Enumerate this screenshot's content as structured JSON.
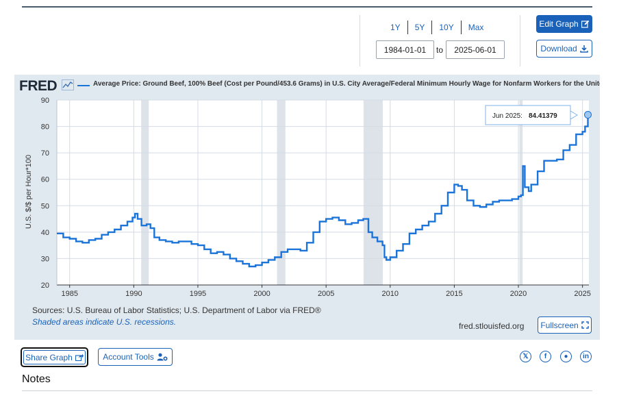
{
  "range_buttons": [
    "1Y",
    "5Y",
    "10Y",
    "Max"
  ],
  "date_range": {
    "start": "1984-01-01",
    "to_label": "to",
    "end": "2025-06-01"
  },
  "edit_graph_label": "Edit Graph",
  "download_label": "Download",
  "fred_logo": "FRED",
  "fullscreen_label": "Fullscreen",
  "sources": "Sources: U.S. Bureau of Labor Statistics; U.S. Department of Labor via FRED®",
  "recession_note": "Shaded areas indicate U.S. recessions.",
  "fred_url": "fred.stlouisfed.org",
  "share_label": "Share Graph",
  "account_label": "Account Tools",
  "notes_title": "Notes",
  "social_icons": [
    "x-icon",
    "facebook-icon",
    "reddit-icon",
    "linkedin-icon"
  ],
  "colors": {
    "accent": "#1a62b9",
    "series": "#1a73d8",
    "recession": "#dde3e9",
    "panel": "#e1e9f0"
  },
  "chart_data": {
    "type": "line",
    "title": "Average Price: Ground Beef, 100% Beef (Cost per Pound/453.6 Grams) in U.S. City Average/Federal Minimum Hourly Wage for Nonfarm Workers for the Unite",
    "ylabel": "U.S. $/$ per Hour*100",
    "xlabel": "",
    "ylim": [
      20,
      90
    ],
    "xlim": [
      1984.0,
      2025.5
    ],
    "yticks": [
      20,
      30,
      40,
      50,
      60,
      70,
      80,
      90
    ],
    "xticks": [
      1985,
      1990,
      1995,
      2000,
      2005,
      2010,
      2015,
      2020,
      2025
    ],
    "grid": true,
    "recessions": [
      [
        1990.58,
        1991.17
      ],
      [
        2001.17,
        2001.83
      ],
      [
        2007.92,
        2009.42
      ],
      [
        2020.08,
        2020.33
      ]
    ],
    "tooltip": {
      "label": "Jun 2025:",
      "value": "84.41379"
    },
    "series": [
      {
        "x": [
          1984.0,
          1984.5,
          1985.0,
          1985.5,
          1986.0,
          1986.5,
          1987.0,
          1987.5,
          1988.0,
          1988.5,
          1989.0,
          1989.5,
          1989.9,
          1990.1,
          1990.3,
          1990.6,
          1991.0,
          1991.3,
          1991.6,
          1992.0,
          1992.5,
          1993.0,
          1993.5,
          1994.0,
          1994.5,
          1995.0,
          1995.5,
          1996.0,
          1996.5,
          1997.0,
          1997.5,
          1998.0,
          1998.5,
          1999.0,
          1999.5,
          2000.0,
          2000.5,
          2001.0,
          2001.5,
          2002.0,
          2002.5,
          2003.0,
          2003.5,
          2004.0,
          2004.5,
          2005.0,
          2005.5,
          2006.0,
          2006.5,
          2007.0,
          2007.5,
          2007.9,
          2008.3,
          2008.6,
          2009.0,
          2009.4,
          2009.55,
          2009.7,
          2010.0,
          2010.5,
          2011.0,
          2011.5,
          2012.0,
          2012.5,
          2013.0,
          2013.5,
          2014.0,
          2014.5,
          2015.0,
          2015.3,
          2015.6,
          2016.0,
          2016.5,
          2017.0,
          2017.5,
          2018.0,
          2018.5,
          2019.0,
          2019.5,
          2020.0,
          2020.2,
          2020.35,
          2020.5,
          2020.8,
          2021.0,
          2021.5,
          2022.0,
          2022.5,
          2023.0,
          2023.5,
          2024.0,
          2024.5,
          2025.0,
          2025.2,
          2025.42
        ],
        "values": [
          39.5,
          38.0,
          37.5,
          36.5,
          36.0,
          37.0,
          37.5,
          39.0,
          40.0,
          41.0,
          42.5,
          44.0,
          45.5,
          47.0,
          45.0,
          42.5,
          43.0,
          41.5,
          38.0,
          37.0,
          36.5,
          36.0,
          36.5,
          36.5,
          35.5,
          35.0,
          33.5,
          32.0,
          32.5,
          31.5,
          30.0,
          29.0,
          28.0,
          27.0,
          27.5,
          28.5,
          29.5,
          30.5,
          32.5,
          33.5,
          33.5,
          33.0,
          36.0,
          40.0,
          44.0,
          45.0,
          45.5,
          44.5,
          43.0,
          43.5,
          44.5,
          45.0,
          40.0,
          38.0,
          36.5,
          35.0,
          30.5,
          29.5,
          30.5,
          33.0,
          35.5,
          39.5,
          41.0,
          42.5,
          44.0,
          47.0,
          50.0,
          55.0,
          58.0,
          57.5,
          56.0,
          52.0,
          50.0,
          49.5,
          50.5,
          51.5,
          52.0,
          52.0,
          52.5,
          53.5,
          54.0,
          65.0,
          57.0,
          55.5,
          58.0,
          63.0,
          67.0,
          67.0,
          67.5,
          71.0,
          73.0,
          77.0,
          78.0,
          80.0,
          84.41379
        ]
      }
    ]
  }
}
